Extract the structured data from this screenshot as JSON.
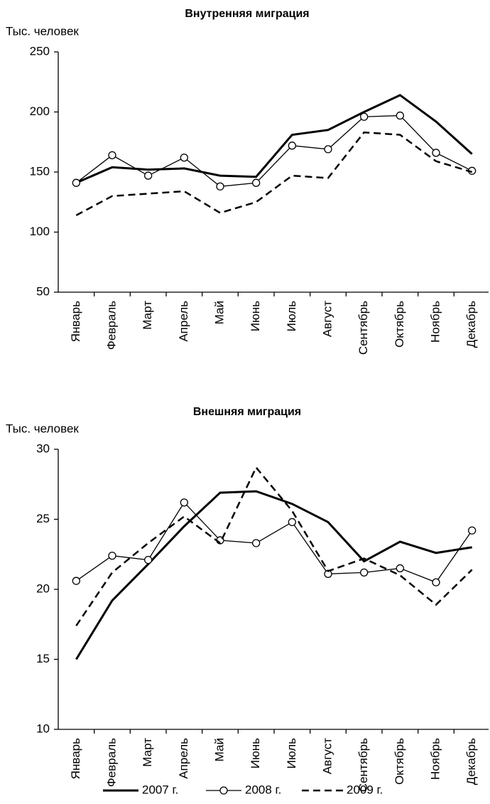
{
  "chart_data": [
    {
      "type": "line",
      "title": "Внутренняя миграция",
      "ylabel": "Тыс. человек",
      "categories": [
        "Январь",
        "Февраль",
        "Март",
        "Апрель",
        "Май",
        "Июнь",
        "Июль",
        "Август",
        "Сентябрь",
        "Октябрь",
        "Ноябрь",
        "Декабрь"
      ],
      "ylim": [
        50,
        250
      ],
      "yticks": [
        50,
        100,
        150,
        200,
        250
      ],
      "series": [
        {
          "name": "2007 г.",
          "color": "#000000",
          "width": 3,
          "dash": false,
          "marker": false,
          "values": [
            141,
            154,
            152,
            153,
            147,
            146,
            181,
            185,
            200,
            214,
            192,
            165
          ]
        },
        {
          "name": "2008 г.",
          "color": "#000000",
          "width": 1.3,
          "dash": false,
          "marker": true,
          "values": [
            141,
            164,
            147,
            162,
            138,
            141,
            172,
            169,
            196,
            197,
            166,
            151
          ]
        },
        {
          "name": "2009 г.",
          "color": "#000000",
          "width": 2.5,
          "dash": true,
          "marker": false,
          "values": [
            114,
            130,
            132,
            134,
            116,
            125,
            147,
            145,
            183,
            181,
            159,
            150
          ]
        }
      ]
    },
    {
      "type": "line",
      "title": "Внешняя миграция",
      "ylabel": "Тыс. человек",
      "categories": [
        "Январь",
        "Февраль",
        "Март",
        "Апрель",
        "Май",
        "Июнь",
        "Июль",
        "Август",
        "Сентябрь",
        "Октябрь",
        "Ноябрь",
        "Декабрь"
      ],
      "ylim": [
        10,
        30
      ],
      "yticks": [
        10,
        15,
        20,
        25,
        30
      ],
      "series": [
        {
          "name": "2007 г.",
          "color": "#000000",
          "width": 3,
          "dash": false,
          "marker": false,
          "values": [
            15.0,
            19.2,
            21.8,
            24.5,
            26.9,
            27.0,
            26.1,
            24.8,
            22.0,
            23.4,
            22.6,
            23.0
          ]
        },
        {
          "name": "2008 г.",
          "color": "#000000",
          "width": 1.3,
          "dash": false,
          "marker": true,
          "values": [
            20.6,
            22.4,
            22.1,
            26.2,
            23.5,
            23.3,
            24.8,
            21.1,
            21.2,
            21.5,
            20.5,
            24.2
          ]
        },
        {
          "name": "2009 г.",
          "color": "#000000",
          "width": 2.5,
          "dash": true,
          "marker": false,
          "values": [
            17.4,
            21.2,
            23.3,
            25.2,
            23.3,
            28.7,
            25.6,
            21.3,
            22.2,
            21.0,
            18.9,
            21.4
          ]
        }
      ]
    }
  ]
}
